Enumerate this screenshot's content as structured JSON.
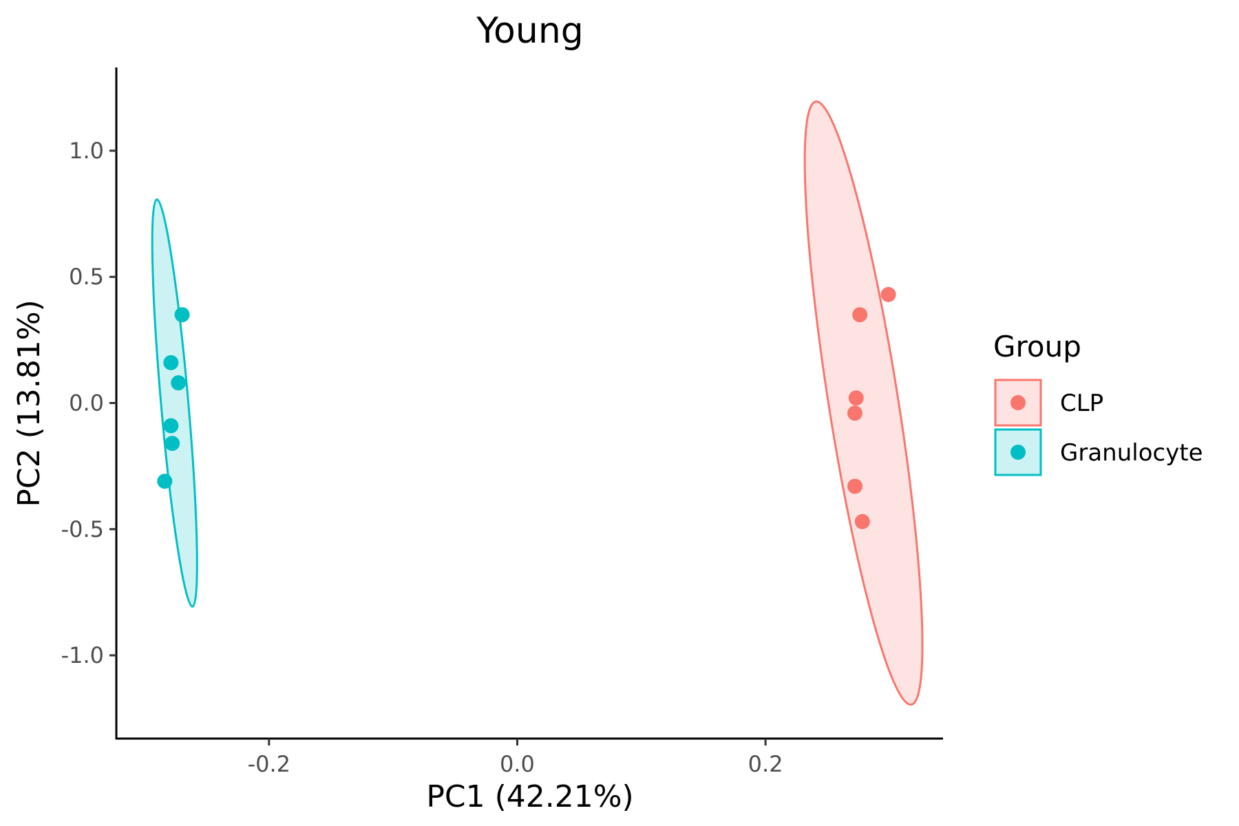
{
  "chart_data": {
    "type": "scatter",
    "title": "Young",
    "xlabel": "PC1 (42.21%)",
    "ylabel": "PC2 (13.81%)",
    "xlim": [
      -0.323,
      0.343
    ],
    "ylim": [
      -1.33,
      1.33
    ],
    "xticks": [
      -0.2,
      0.0,
      0.2
    ],
    "xtick_labels": [
      "-0.2",
      "0.0",
      "0.2"
    ],
    "yticks": [
      -1.0,
      -0.5,
      0.0,
      0.5,
      1.0
    ],
    "ytick_labels": [
      "-1.0",
      "-0.5",
      "0.0",
      "0.5",
      "1.0"
    ],
    "grid": false,
    "legend": {
      "title": "Group",
      "position": "right"
    },
    "series": [
      {
        "name": "CLP",
        "color": "#F8766D",
        "fill": "#FDE3E1",
        "points": [
          {
            "x": 0.299,
            "y": 0.43
          },
          {
            "x": 0.276,
            "y": 0.35
          },
          {
            "x": 0.273,
            "y": 0.02
          },
          {
            "x": 0.272,
            "y": -0.04
          },
          {
            "x": 0.272,
            "y": -0.33
          },
          {
            "x": 0.278,
            "y": -0.47
          }
        ],
        "ellipse": {
          "center": [
            0.279,
            0.0
          ],
          "radius_x": 0.028,
          "radius_y": 1.21,
          "tilt_deg": -9
        }
      },
      {
        "name": "Granulocyte",
        "color": "#00BFC4",
        "fill": "#CCF2F3",
        "points": [
          {
            "x": -0.27,
            "y": 0.35
          },
          {
            "x": -0.279,
            "y": 0.16
          },
          {
            "x": -0.273,
            "y": 0.08
          },
          {
            "x": -0.279,
            "y": -0.09
          },
          {
            "x": -0.278,
            "y": -0.16
          },
          {
            "x": -0.284,
            "y": -0.31
          }
        ],
        "ellipse": {
          "center": [
            -0.276,
            0.0
          ],
          "radius_x": 0.011,
          "radius_y": 0.81,
          "tilt_deg": -5
        }
      }
    ]
  }
}
